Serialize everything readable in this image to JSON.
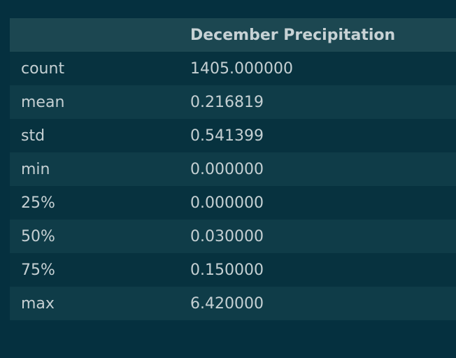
{
  "table": {
    "header": {
      "index_label": "",
      "column_label": "December Precipitation"
    },
    "rows": [
      {
        "label": "count",
        "value": "1405.000000"
      },
      {
        "label": "mean",
        "value": "0.216819"
      },
      {
        "label": "std",
        "value": "0.541399"
      },
      {
        "label": "min",
        "value": "0.000000"
      },
      {
        "label": "25%",
        "value": "0.000000"
      },
      {
        "label": "50%",
        "value": "0.030000"
      },
      {
        "label": "75%",
        "value": "0.150000"
      },
      {
        "label": "max",
        "value": "6.420000"
      }
    ]
  },
  "colors": {
    "background": "#05303f",
    "header_bg": "#1c4751",
    "row_odd": "#07323f",
    "row_even": "#0f3c48",
    "text": "#c5d0d3"
  }
}
